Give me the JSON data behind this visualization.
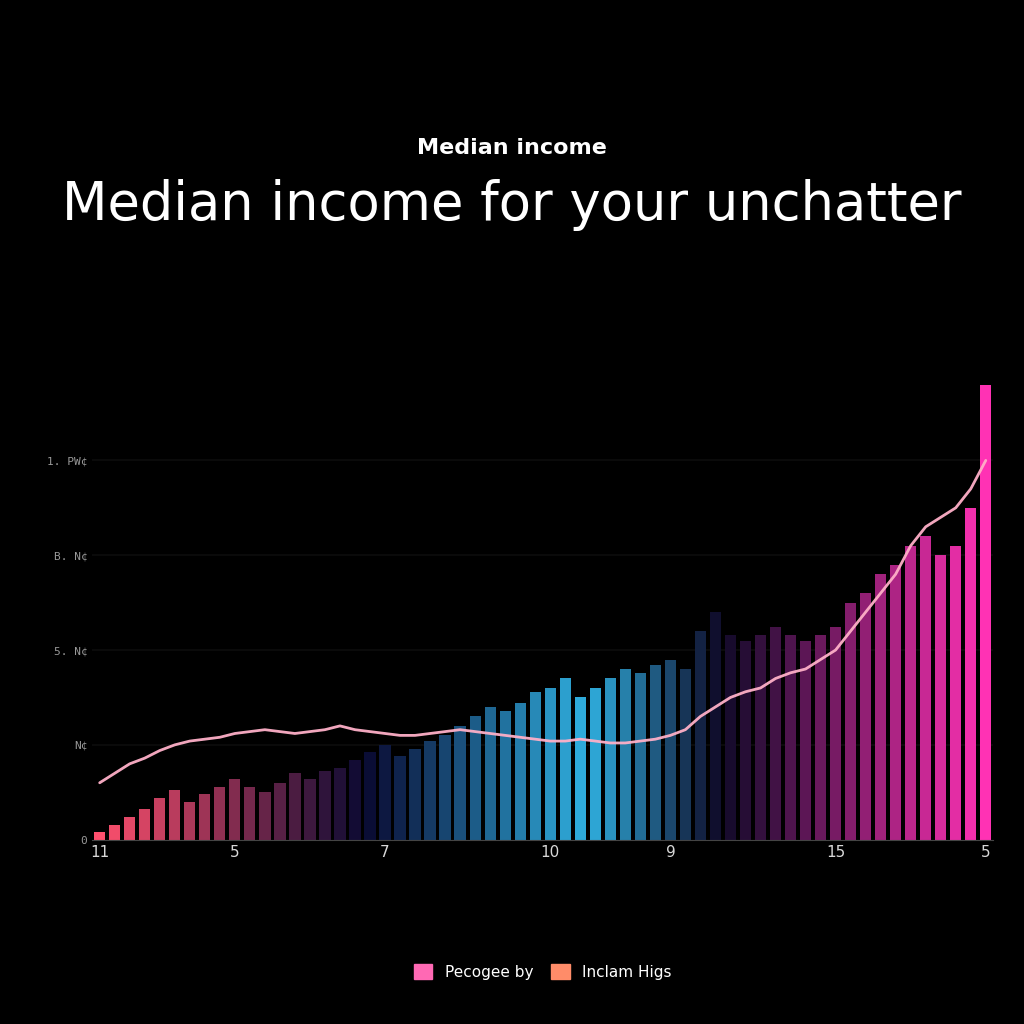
{
  "title": "Median income",
  "subtitle": "Median income for your unchatter",
  "background_color": "#000000",
  "text_color": "#ffffff",
  "xlabel_ticks": [
    "11",
    "5",
    "7",
    "10",
    "9",
    "15",
    "5"
  ],
  "xtick_positions": [
    0,
    9,
    19,
    30,
    38,
    49,
    59
  ],
  "ytick_labels": [
    "0",
    "N¢",
    "5. N¢",
    "B. N¢",
    "1. PW¢"
  ],
  "ytick_values": [
    0,
    50000,
    100000,
    150000,
    200000
  ],
  "ylim": [
    0,
    270000
  ],
  "legend_labels": [
    "Pecogee by",
    "Inclam Higs"
  ],
  "legend_colors": [
    "#ff69b4",
    "#ff8c69"
  ],
  "bar_values": [
    4000,
    8000,
    12000,
    16000,
    22000,
    26000,
    20000,
    24000,
    28000,
    32000,
    28000,
    25000,
    30000,
    35000,
    32000,
    36000,
    38000,
    42000,
    46000,
    50000,
    44000,
    48000,
    52000,
    55000,
    60000,
    65000,
    70000,
    68000,
    72000,
    78000,
    80000,
    85000,
    75000,
    80000,
    85000,
    90000,
    88000,
    92000,
    95000,
    90000,
    110000,
    120000,
    108000,
    105000,
    108000,
    112000,
    108000,
    105000,
    108000,
    112000,
    125000,
    130000,
    140000,
    145000,
    155000,
    160000,
    150000,
    155000,
    175000,
    240000
  ],
  "line_values": [
    30000,
    35000,
    40000,
    43000,
    47000,
    50000,
    52000,
    53000,
    54000,
    56000,
    57000,
    58000,
    57000,
    56000,
    57000,
    58000,
    60000,
    58000,
    57000,
    56000,
    55000,
    55000,
    56000,
    57000,
    58000,
    57000,
    56000,
    55000,
    54000,
    53000,
    52000,
    52000,
    53000,
    52000,
    51000,
    51000,
    52000,
    53000,
    55000,
    58000,
    65000,
    70000,
    75000,
    78000,
    80000,
    85000,
    88000,
    90000,
    95000,
    100000,
    110000,
    120000,
    130000,
    140000,
    155000,
    165000,
    170000,
    175000,
    185000,
    200000
  ],
  "n_bars": 60
}
